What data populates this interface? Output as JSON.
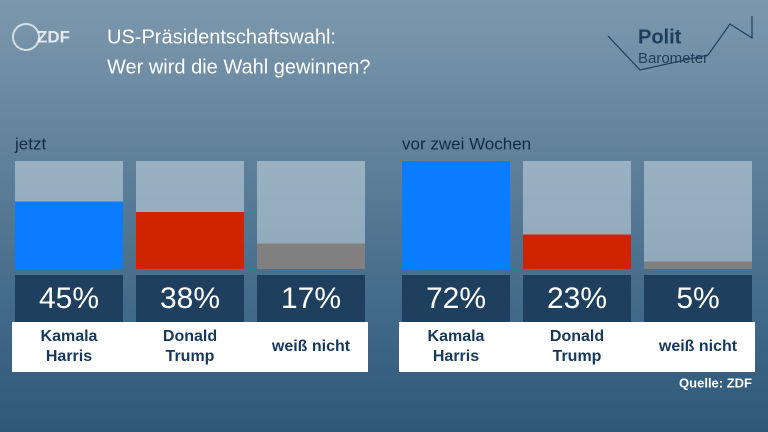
{
  "header": {
    "logo": "ZDF",
    "title": "US-Präsidentschaftswahl:",
    "subtitle": "Wer wird die Wahl gewinnen?",
    "brand_top": "Polit",
    "brand_bottom": "Barometer"
  },
  "chart_data": [
    {
      "type": "bar",
      "title": "jetzt",
      "categories": [
        "Kamala Harris",
        "Donald Trump",
        "weiß nicht"
      ],
      "values": [
        45,
        38,
        17
      ],
      "value_labels": [
        "45%",
        "38%",
        "17%"
      ],
      "colors": [
        "#0a7cff",
        "#d02300",
        "#808080"
      ],
      "ylim": [
        0,
        72
      ]
    },
    {
      "type": "bar",
      "title": "vor zwei Wochen",
      "categories": [
        "Kamala Harris",
        "Donald Trump",
        "weiß nicht"
      ],
      "values": [
        72,
        23,
        5
      ],
      "value_labels": [
        "72%",
        "23%",
        "5%"
      ],
      "colors": [
        "#0a7cff",
        "#d02300",
        "#808080"
      ],
      "ylim": [
        0,
        72
      ]
    }
  ],
  "source": "Quelle: ZDF"
}
